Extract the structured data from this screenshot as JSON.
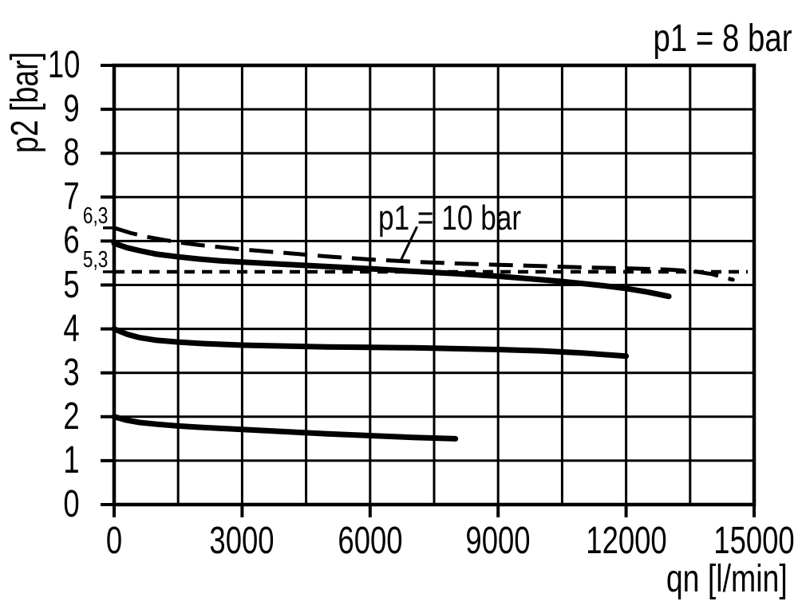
{
  "chart_data": {
    "type": "line",
    "title": "p1 = 8 bar",
    "xlabel": "qn [l/min]",
    "ylabel": "p2 [bar]",
    "xlim": [
      0,
      15000
    ],
    "ylim": [
      0,
      10
    ],
    "x_grid_step": 1500,
    "y_grid_step": 1,
    "grid": true,
    "x_ticks": [
      {
        "value": 0,
        "label": "0"
      },
      {
        "value": 3000,
        "label": "3000"
      },
      {
        "value": 6000,
        "label": "6000"
      },
      {
        "value": 9000,
        "label": "9000"
      },
      {
        "value": 12000,
        "label": "12000"
      },
      {
        "value": 15000,
        "label": "15000"
      }
    ],
    "y_ticks": [
      {
        "value": 0,
        "label": "0"
      },
      {
        "value": 1,
        "label": "1"
      },
      {
        "value": 2,
        "label": "2"
      },
      {
        "value": 3,
        "label": "3"
      },
      {
        "value": 4,
        "label": "4"
      },
      {
        "value": 5,
        "label": "5"
      },
      {
        "value": 6,
        "label": "6"
      },
      {
        "value": 7,
        "label": "7"
      },
      {
        "value": 8,
        "label": "8"
      },
      {
        "value": 9,
        "label": "9"
      },
      {
        "value": 10,
        "label": "10"
      }
    ],
    "y_extra_ticks": [
      {
        "value": 6.3,
        "label": "6,3"
      },
      {
        "value": 5.3,
        "label": "5,3"
      }
    ],
    "annotation": {
      "text": "p1 = 10 bar",
      "leader_from": [
        7100,
        6.33
      ],
      "leader_to": [
        6730,
        5.58
      ]
    },
    "series": [
      {
        "id": "curve-p1-10bar",
        "name": "p1 = 10 bar",
        "style": "long-dash",
        "stroke_width": 5,
        "end_dot": true,
        "points": [
          [
            0,
            6.3
          ],
          [
            400,
            6.18
          ],
          [
            800,
            6.09
          ],
          [
            1200,
            6.02
          ],
          [
            1600,
            5.96
          ],
          [
            2000,
            5.91
          ],
          [
            2500,
            5.86
          ],
          [
            3000,
            5.81
          ],
          [
            4000,
            5.73
          ],
          [
            5000,
            5.65
          ],
          [
            6000,
            5.58
          ],
          [
            7000,
            5.53
          ],
          [
            8000,
            5.49
          ],
          [
            9000,
            5.46
          ],
          [
            10000,
            5.43
          ],
          [
            11000,
            5.4
          ],
          [
            12000,
            5.38
          ],
          [
            13000,
            5.35
          ],
          [
            13600,
            5.31
          ],
          [
            14000,
            5.25
          ],
          [
            14500,
            5.12
          ]
        ]
      },
      {
        "id": "line-reference-5-3bar",
        "name": "5,3 bar reference",
        "style": "short-dash",
        "stroke_width": 4.5,
        "end_dot": false,
        "points": [
          [
            0,
            5.3
          ],
          [
            14850,
            5.3
          ]
        ]
      },
      {
        "id": "curve-p1-8bar-set-6bar",
        "name": "p1 = 8 bar, outlet ~6 bar",
        "style": "solid",
        "stroke_width": 7,
        "end_dot": false,
        "points": [
          [
            0,
            5.95
          ],
          [
            300,
            5.85
          ],
          [
            600,
            5.78
          ],
          [
            1000,
            5.7
          ],
          [
            1500,
            5.64
          ],
          [
            2000,
            5.59
          ],
          [
            2500,
            5.55
          ],
          [
            3000,
            5.52
          ],
          [
            4000,
            5.47
          ],
          [
            5000,
            5.42
          ],
          [
            6000,
            5.37
          ],
          [
            7000,
            5.31
          ],
          [
            8000,
            5.26
          ],
          [
            9000,
            5.2
          ],
          [
            10000,
            5.12
          ],
          [
            10500,
            5.08
          ],
          [
            11000,
            5.03
          ],
          [
            11500,
            4.98
          ],
          [
            12000,
            4.92
          ],
          [
            12500,
            4.84
          ],
          [
            13000,
            4.74
          ]
        ]
      },
      {
        "id": "curve-p1-8bar-set-4bar",
        "name": "p1 = 8 bar, outlet 4 bar",
        "style": "solid",
        "stroke_width": 7,
        "end_dot": false,
        "points": [
          [
            0,
            4.0
          ],
          [
            300,
            3.88
          ],
          [
            600,
            3.8
          ],
          [
            1000,
            3.74
          ],
          [
            1500,
            3.7
          ],
          [
            2000,
            3.67
          ],
          [
            3000,
            3.63
          ],
          [
            4000,
            3.61
          ],
          [
            5000,
            3.59
          ],
          [
            6000,
            3.58
          ],
          [
            7000,
            3.57
          ],
          [
            8000,
            3.55
          ],
          [
            9000,
            3.53
          ],
          [
            10000,
            3.5
          ],
          [
            11000,
            3.45
          ],
          [
            12000,
            3.38
          ]
        ]
      },
      {
        "id": "curve-p1-8bar-set-2bar",
        "name": "p1 = 8 bar, outlet 2 bar",
        "style": "solid",
        "stroke_width": 7,
        "end_dot": false,
        "points": [
          [
            0,
            2.0
          ],
          [
            300,
            1.92
          ],
          [
            600,
            1.87
          ],
          [
            1000,
            1.83
          ],
          [
            1500,
            1.79
          ],
          [
            2000,
            1.76
          ],
          [
            3000,
            1.71
          ],
          [
            4000,
            1.66
          ],
          [
            5000,
            1.61
          ],
          [
            6000,
            1.57
          ],
          [
            7000,
            1.53
          ],
          [
            8000,
            1.5
          ]
        ]
      }
    ]
  },
  "colors": {
    "foreground": "#000000",
    "background": "#ffffff"
  }
}
